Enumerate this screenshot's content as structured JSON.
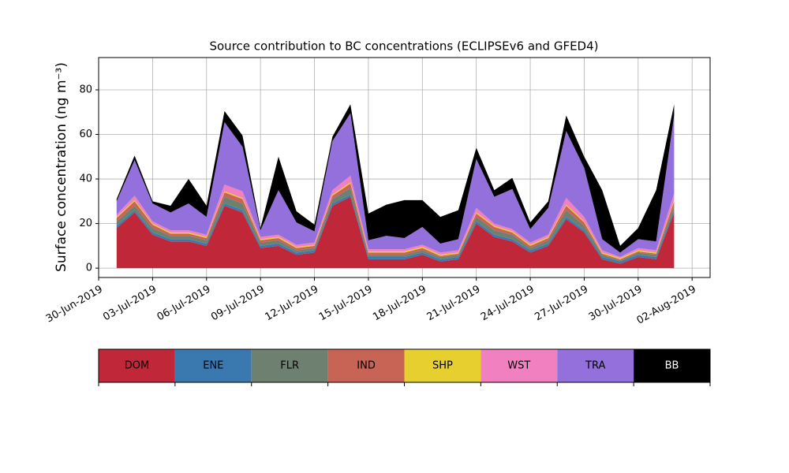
{
  "chart_data": {
    "type": "stacked_area",
    "title": "Source contribution to BC concentrations (ECLIPSEv6 and GFED4)",
    "y_label": "Surface concentration (ng m⁻³)",
    "x": [
      "2019-07-01",
      "2019-07-02",
      "2019-07-03",
      "2019-07-04",
      "2019-07-05",
      "2019-07-06",
      "2019-07-07",
      "2019-07-08",
      "2019-07-09",
      "2019-07-10",
      "2019-07-11",
      "2019-07-12",
      "2019-07-13",
      "2019-07-14",
      "2019-07-15",
      "2019-07-16",
      "2019-07-17",
      "2019-07-18",
      "2019-07-19",
      "2019-07-20",
      "2019-07-21",
      "2019-07-22",
      "2019-07-23",
      "2019-07-24",
      "2019-07-25",
      "2019-07-26",
      "2019-07-27",
      "2019-07-28",
      "2019-07-29",
      "2019-07-30",
      "2019-07-31",
      "2019-08-01"
    ],
    "series": [
      {
        "name": "DOM",
        "color": "#c0283a",
        "values": [
          18,
          25,
          15,
          12,
          12,
          10,
          28,
          25,
          9,
          10,
          6,
          7,
          28,
          32,
          4,
          4,
          4,
          6,
          3,
          4,
          20,
          14,
          12,
          7,
          10,
          22,
          16,
          4,
          2,
          5,
          4,
          25
        ]
      },
      {
        "name": "ENE",
        "color": "#3a78b0",
        "values": [
          1,
          1,
          1,
          1,
          1,
          1,
          1,
          1,
          1,
          1,
          1,
          1,
          1,
          1,
          1,
          1,
          1,
          1,
          1,
          1,
          1,
          1,
          1,
          1,
          1,
          1,
          1,
          1,
          1,
          1,
          1,
          1
        ]
      },
      {
        "name": "FLR",
        "color": "#6e8070",
        "values": [
          2,
          2,
          2,
          1.5,
          1.5,
          1.5,
          3,
          3,
          1.5,
          1.5,
          1,
          1,
          2,
          3,
          1,
          1,
          1,
          1,
          1,
          1,
          2,
          2,
          2,
          1,
          1.5,
          3,
          2,
          1,
          0.5,
          1,
          1,
          2
        ]
      },
      {
        "name": "IND",
        "color": "#c86455",
        "values": [
          1.5,
          2,
          1.5,
          1,
          1,
          1,
          2,
          2,
          1,
          1,
          1,
          1,
          1.5,
          2,
          1,
          1,
          1,
          1,
          0.5,
          0.5,
          1.5,
          1.5,
          1,
          1,
          1,
          2,
          1.5,
          0.5,
          0.5,
          0.5,
          0.5,
          2
        ]
      },
      {
        "name": "SHP",
        "color": "#e6cf2e",
        "values": [
          0.5,
          0.5,
          0.5,
          0.5,
          0.5,
          0.5,
          0.5,
          0.5,
          0.5,
          0.5,
          0.5,
          0.5,
          0.5,
          0.5,
          0.5,
          0.5,
          0.5,
          0.5,
          0.5,
          0.5,
          0.5,
          0.5,
          0.5,
          0.5,
          0.5,
          0.5,
          0.5,
          0.5,
          0.5,
          0.5,
          0.5,
          0.5
        ]
      },
      {
        "name": "WST",
        "color": "#f080c0",
        "values": [
          1,
          2,
          1,
          1,
          1,
          1,
          3,
          3,
          1,
          1,
          1,
          1,
          2,
          3,
          1,
          1,
          1,
          1,
          1,
          1,
          2,
          1,
          1,
          1,
          1,
          3,
          2,
          1,
          0.5,
          1,
          1,
          3
        ]
      },
      {
        "name": "TRA",
        "color": "#9370db",
        "values": [
          6,
          16,
          8,
          8,
          12,
          8,
          28,
          20,
          3,
          20,
          10,
          5,
          22,
          28,
          4,
          6,
          5,
          8,
          4,
          5,
          22,
          12,
          18,
          6,
          12,
          30,
          22,
          5,
          2,
          4,
          4,
          35
        ]
      },
      {
        "name": "BB",
        "color": "#000000",
        "values": [
          1,
          2,
          1,
          3,
          11,
          5,
          5,
          5,
          1,
          15,
          5,
          3,
          2,
          4,
          12,
          14,
          17,
          12,
          12,
          13,
          5,
          3,
          5,
          3,
          3,
          7,
          5,
          22,
          3,
          5,
          23,
          5
        ]
      }
    ],
    "xlim": [
      "2019-06-30",
      "2019-08-03"
    ],
    "xticks": [
      {
        "value": "2019-06-30",
        "label": "30-Jun-2019"
      },
      {
        "value": "2019-07-03",
        "label": "03-Jul-2019"
      },
      {
        "value": "2019-07-06",
        "label": "06-Jul-2019"
      },
      {
        "value": "2019-07-09",
        "label": "09-Jul-2019"
      },
      {
        "value": "2019-07-12",
        "label": "12-Jul-2019"
      },
      {
        "value": "2019-07-15",
        "label": "15-Jul-2019"
      },
      {
        "value": "2019-07-18",
        "label": "18-Jul-2019"
      },
      {
        "value": "2019-07-21",
        "label": "21-Jul-2019"
      },
      {
        "value": "2019-07-24",
        "label": "24-Jul-2019"
      },
      {
        "value": "2019-07-27",
        "label": "27-Jul-2019"
      },
      {
        "value": "2019-07-30",
        "label": "30-Jul-2019"
      },
      {
        "value": "2019-08-02",
        "label": "02-Aug-2019"
      }
    ],
    "ylim": [
      -4.2,
      94.5
    ],
    "yticks": [
      0,
      20,
      40,
      60,
      80
    ],
    "grid": true
  }
}
